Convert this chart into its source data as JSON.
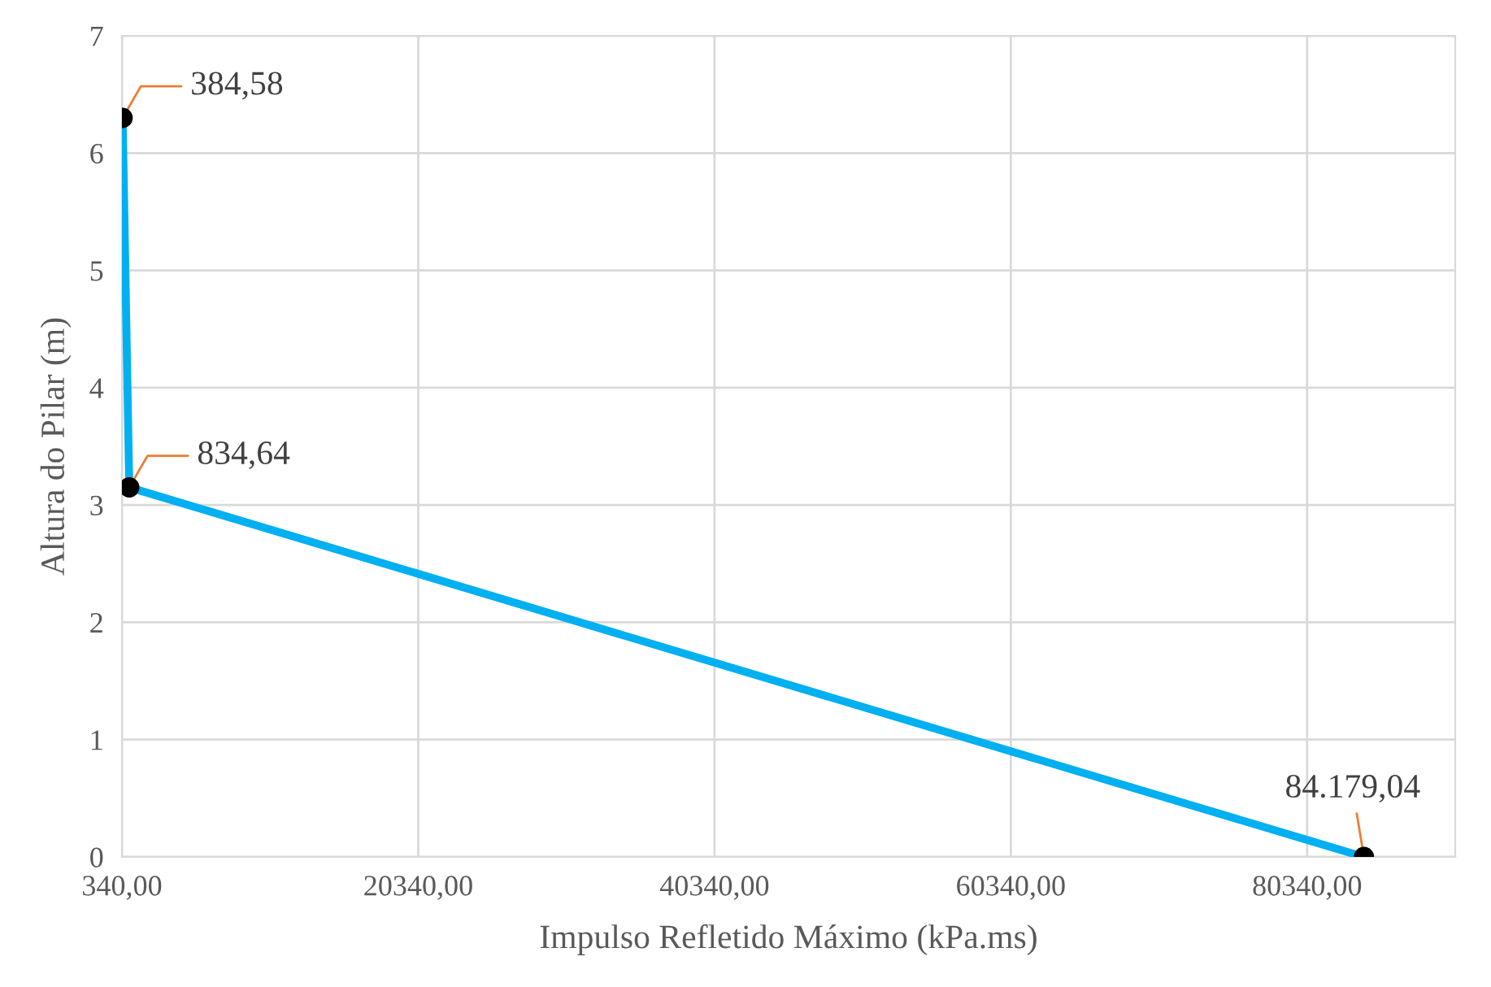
{
  "chart_data": {
    "type": "line",
    "xlabel": "Impulso Refletido Máximo (kPa.ms)",
    "ylabel": "Altura do Pilar (m)",
    "x": [
      384.58,
      834.64,
      84179.04
    ],
    "series": [
      {
        "color": "#00b0f0",
        "values": [
          6.3,
          3.15,
          0
        ]
      }
    ],
    "annotations": [
      {
        "text": "384,58",
        "x": 384.58,
        "y": 6.3
      },
      {
        "text": "834,64",
        "x": 834.64,
        "y": 3.15
      },
      {
        "text": "84.179,04",
        "x": 84179.04,
        "y": 0
      }
    ],
    "xlim": [
      340,
      90340
    ],
    "xticks": [
      {
        "value": 340,
        "label": "340,00"
      },
      {
        "value": 20340,
        "label": "20340,00"
      },
      {
        "value": 40340,
        "label": "40340,00"
      },
      {
        "value": 60340,
        "label": "60340,00"
      },
      {
        "value": 80340,
        "label": "80340,00"
      }
    ],
    "ylim": [
      0,
      7
    ],
    "yticks": [
      0,
      1,
      2,
      3,
      4,
      5,
      6,
      7
    ],
    "grid": true,
    "marker": "circle",
    "line_style": "solid"
  }
}
